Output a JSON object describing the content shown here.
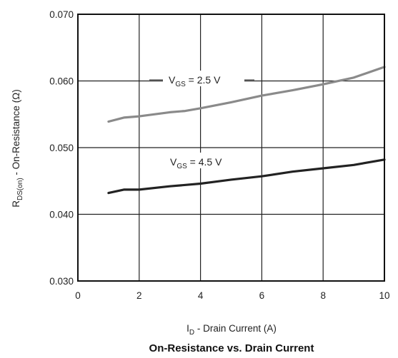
{
  "chart_data": {
    "type": "line",
    "title": "On-Resistance vs. Drain Current",
    "xlabel": {
      "main": "I",
      "sub": "D",
      "rest": " - Drain Current (A)"
    },
    "ylabel": {
      "main": "R",
      "sub": "DS(on)",
      "rest": " - On-Resistance (Ω)"
    },
    "xlim": [
      0,
      10
    ],
    "ylim": [
      0.03,
      0.07
    ],
    "x_ticks": [
      0,
      2,
      4,
      6,
      8,
      10
    ],
    "x_tick_labels": [
      "0",
      "2",
      "4",
      "6",
      "8",
      "10"
    ],
    "y_ticks": [
      0.03,
      0.04,
      0.05,
      0.06,
      0.07
    ],
    "y_tick_labels": [
      "0.030",
      "0.040",
      "0.050",
      "0.060",
      "0.070"
    ],
    "grid": true,
    "series": [
      {
        "name": {
          "main": "V",
          "sub": "GS",
          "rest": " = 2.5 V"
        },
        "color": "#8a8a8a",
        "x": [
          1,
          1.5,
          2,
          3,
          3.5,
          4,
          5,
          6,
          7,
          8,
          9,
          10
        ],
        "y": [
          0.0539,
          0.0545,
          0.0547,
          0.0553,
          0.0555,
          0.0559,
          0.0568,
          0.0578,
          0.0586,
          0.0595,
          0.0605,
          0.0621
        ]
      },
      {
        "name": {
          "main": "V",
          "sub": "GS",
          "rest": " = 4.5 V"
        },
        "color": "#222222",
        "x": [
          1,
          1.5,
          2,
          3,
          4,
          5,
          6,
          7,
          8,
          9,
          10
        ],
        "y": [
          0.0432,
          0.0437,
          0.0437,
          0.0442,
          0.0446,
          0.0452,
          0.0457,
          0.0464,
          0.0469,
          0.0474,
          0.0482
        ]
      }
    ]
  }
}
